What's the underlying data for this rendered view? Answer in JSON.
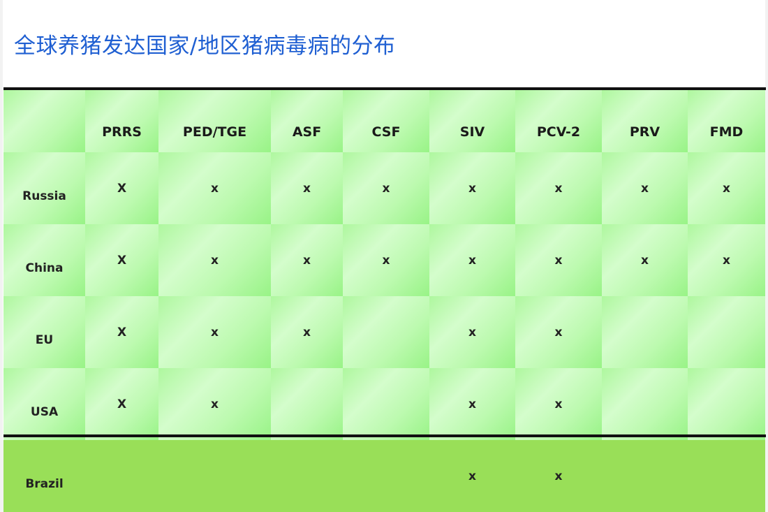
{
  "title": "全球养猪发达国家/地区猪病毒病的分布",
  "table": {
    "columns": [
      "",
      "PRRS",
      "PED/TGE",
      "ASF",
      "CSF",
      "SIV",
      "PCV-2",
      "PRV",
      "FMD"
    ],
    "rows": [
      {
        "label": "Russia",
        "cells": [
          "X",
          "x",
          "x",
          "x",
          "x",
          "x",
          "x",
          "x"
        ]
      },
      {
        "label": "China",
        "cells": [
          "X",
          "x",
          "x",
          "x",
          "x",
          "x",
          "x",
          "x"
        ]
      },
      {
        "label": "EU",
        "cells": [
          "X",
          "x",
          "x",
          "",
          "x",
          "x",
          "",
          ""
        ]
      },
      {
        "label": "USA",
        "cells": [
          "X",
          "x",
          "",
          "",
          "x",
          "x",
          "",
          ""
        ]
      },
      {
        "label": "Brazil",
        "cells": [
          "",
          "",
          "",
          "",
          "x",
          "x",
          "",
          ""
        ]
      }
    ],
    "highlight": {
      "row": "China",
      "column": "ASF",
      "color": "#d42020"
    },
    "colors": {
      "title": "#1f5fd2",
      "prrs": "#1c25c4",
      "cell_green": "#bdfab0",
      "brazil_row": "#99df58"
    }
  }
}
